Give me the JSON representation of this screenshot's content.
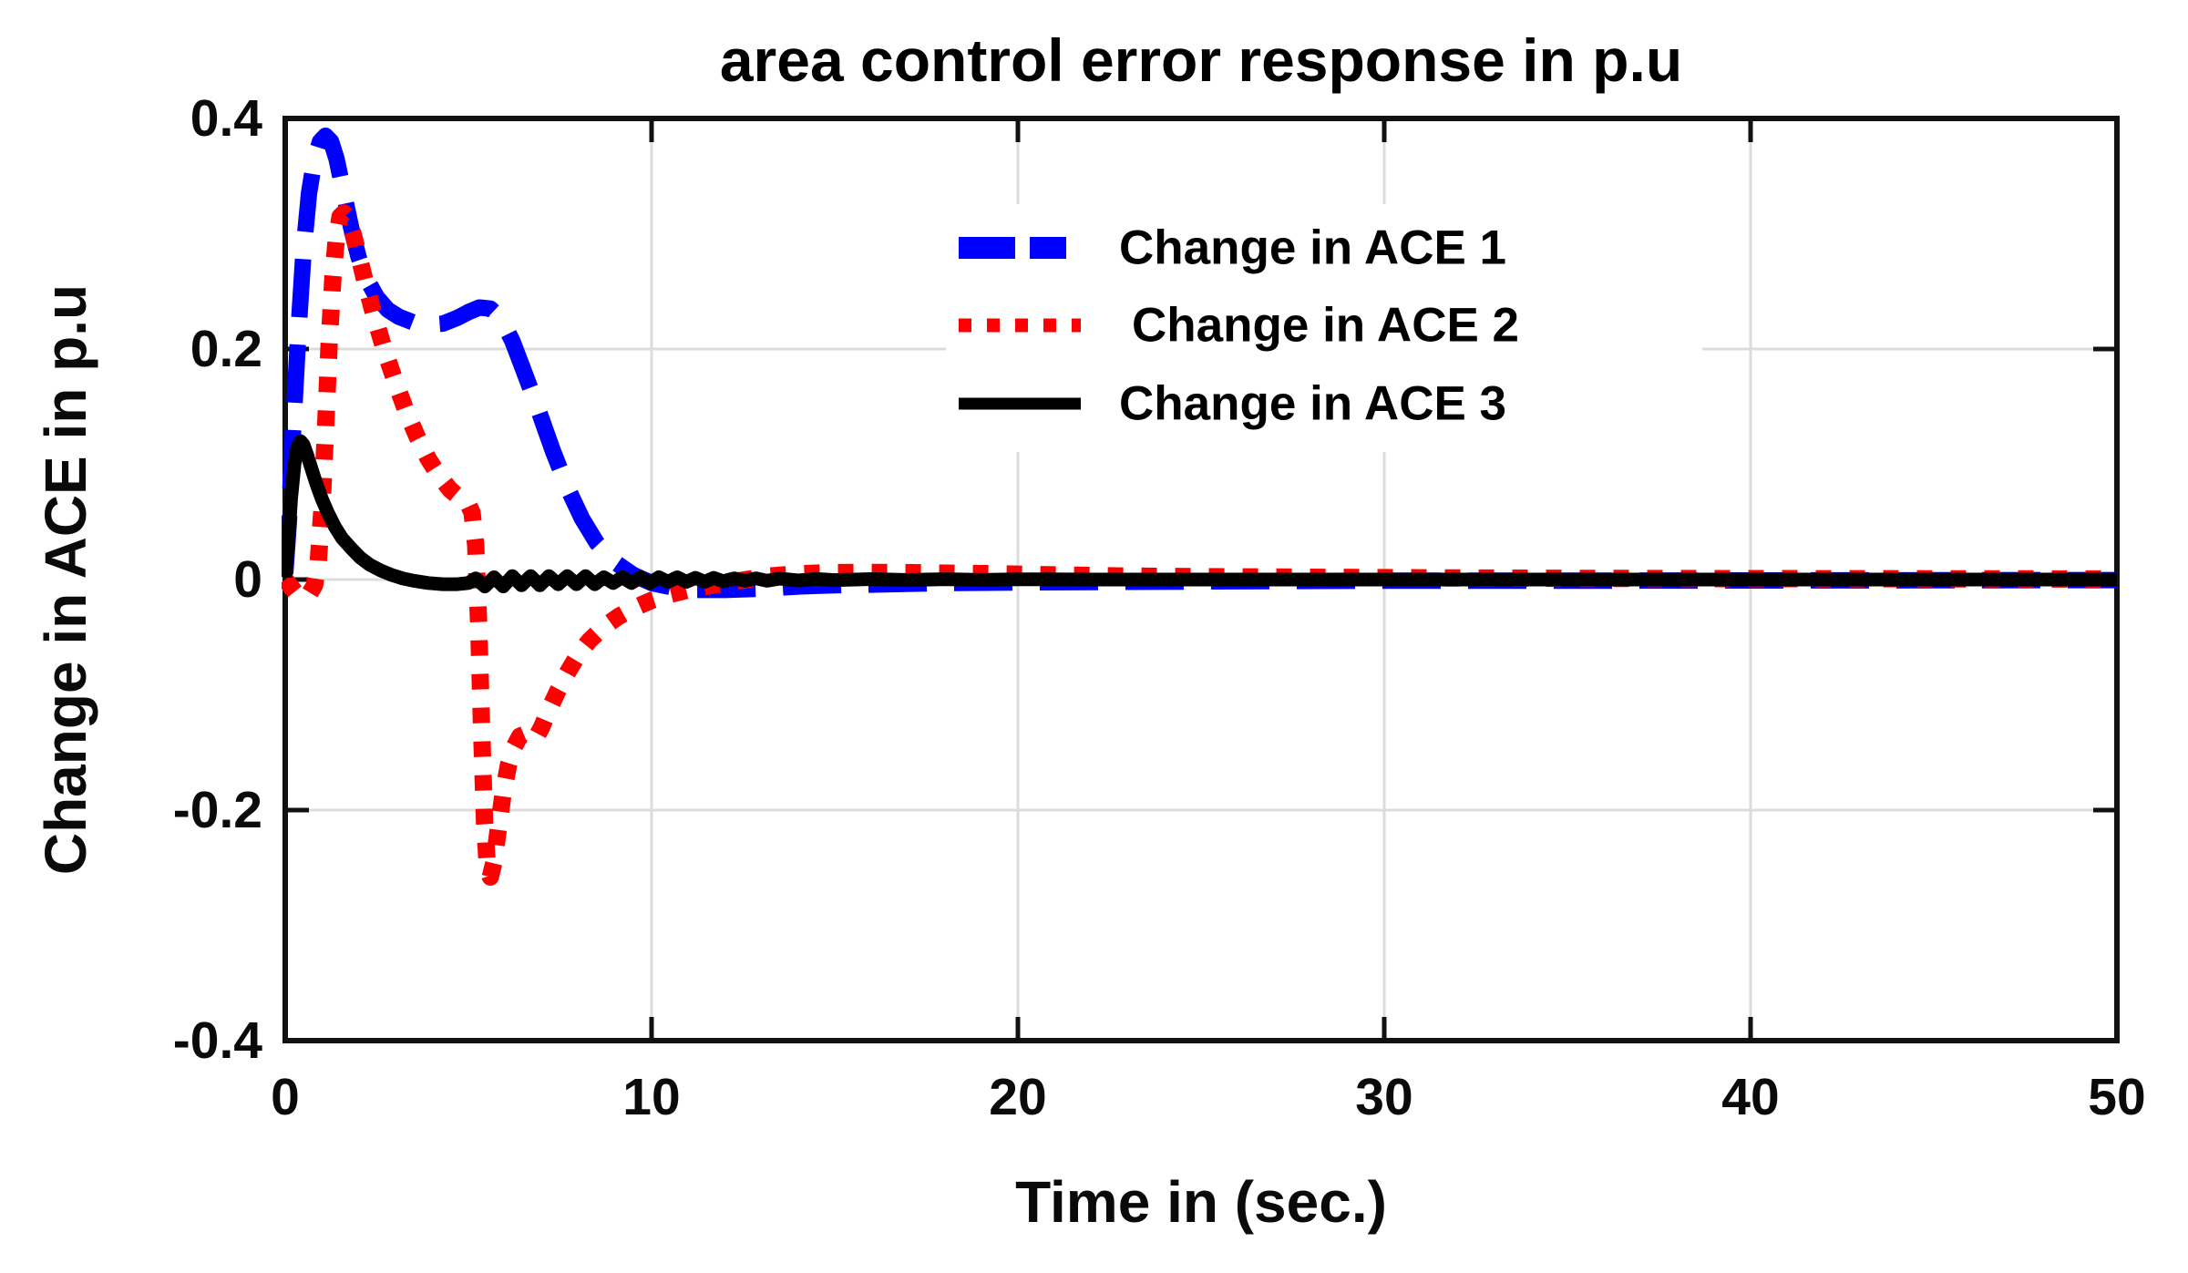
{
  "chart_data": {
    "type": "line",
    "title": "area control error response in p.u",
    "xlabel": "Time in (sec.)",
    "ylabel": "Change in ACE in p.u",
    "xlim": [
      0,
      50
    ],
    "ylim": [
      -0.4,
      0.4
    ],
    "xticks": [
      0,
      10,
      20,
      30,
      40,
      50
    ],
    "xtick_labels": [
      "0",
      "10",
      "20",
      "30",
      "40",
      "50"
    ],
    "yticks": [
      0.4,
      0.2,
      0,
      -0.2,
      -0.4
    ],
    "ytick_labels": [
      "0.4",
      "0.2",
      "0",
      "-0.2",
      "-0.4"
    ],
    "grid": true,
    "grid_color": "#dcdcdc",
    "axis_color": "#111111",
    "background": "#ffffff",
    "legend_position": "upper center-right, no border, white background",
    "series": [
      {
        "name": "Change in ACE 1",
        "color": "#0000ff",
        "style": "dashed",
        "width": 18,
        "points": [
          [
            0,
            0.005
          ],
          [
            0.1,
            0.05
          ],
          [
            0.2,
            0.12
          ],
          [
            0.35,
            0.21
          ],
          [
            0.5,
            0.285
          ],
          [
            0.65,
            0.335
          ],
          [
            0.8,
            0.365
          ],
          [
            0.95,
            0.38
          ],
          [
            1.1,
            0.385
          ],
          [
            1.25,
            0.38
          ],
          [
            1.4,
            0.365
          ],
          [
            1.6,
            0.335
          ],
          [
            1.8,
            0.305
          ],
          [
            2,
            0.28
          ],
          [
            2.2,
            0.262
          ],
          [
            2.5,
            0.245
          ],
          [
            2.8,
            0.234
          ],
          [
            3.1,
            0.228
          ],
          [
            3.5,
            0.223
          ],
          [
            3.9,
            0.221
          ],
          [
            4.3,
            0.222
          ],
          [
            4.7,
            0.227
          ],
          [
            5,
            0.232
          ],
          [
            5.3,
            0.236
          ],
          [
            5.6,
            0.235
          ],
          [
            5.9,
            0.226
          ],
          [
            6.2,
            0.207
          ],
          [
            6.5,
            0.182
          ],
          [
            6.9,
            0.148
          ],
          [
            7.3,
            0.112
          ],
          [
            7.7,
            0.08
          ],
          [
            8.1,
            0.053
          ],
          [
            8.5,
            0.032
          ],
          [
            9,
            0.015
          ],
          [
            9.5,
            0.004
          ],
          [
            10,
            -0.003
          ],
          [
            10.6,
            -0.007
          ],
          [
            11.2,
            -0.009
          ],
          [
            12,
            -0.009
          ],
          [
            13,
            -0.008
          ],
          [
            14,
            -0.006
          ],
          [
            15,
            -0.005
          ],
          [
            16.5,
            -0.004
          ],
          [
            18,
            -0.003
          ],
          [
            20,
            -0.0025
          ],
          [
            23,
            -0.002
          ],
          [
            26,
            -0.0015
          ],
          [
            30,
            -0.001
          ],
          [
            35,
            -0.001
          ],
          [
            40,
            -0.0008
          ],
          [
            45,
            -0.0006
          ],
          [
            50,
            -0.0005
          ]
        ]
      },
      {
        "name": "Change in ACE 2",
        "color": "#ff0000",
        "style": "dotted",
        "width": 19,
        "points": [
          [
            0,
            0
          ],
          [
            0.15,
            -0.006
          ],
          [
            0.3,
            -0.012
          ],
          [
            0.5,
            -0.015
          ],
          [
            0.65,
            -0.013
          ],
          [
            0.8,
            -0.005
          ],
          [
            0.9,
            0.015
          ],
          [
            1,
            0.06
          ],
          [
            1.1,
            0.13
          ],
          [
            1.2,
            0.205
          ],
          [
            1.3,
            0.262
          ],
          [
            1.4,
            0.298
          ],
          [
            1.5,
            0.315
          ],
          [
            1.6,
            0.318
          ],
          [
            1.72,
            0.313
          ],
          [
            1.85,
            0.3
          ],
          [
            2,
            0.282
          ],
          [
            2.2,
            0.256
          ],
          [
            2.4,
            0.232
          ],
          [
            2.7,
            0.2
          ],
          [
            3,
            0.172
          ],
          [
            3.3,
            0.146
          ],
          [
            3.6,
            0.124
          ],
          [
            3.9,
            0.105
          ],
          [
            4.2,
            0.09
          ],
          [
            4.5,
            0.078
          ],
          [
            4.8,
            0.07
          ],
          [
            5,
            0.065
          ],
          [
            5.1,
            0.058
          ],
          [
            5.2,
            0.03
          ],
          [
            5.28,
            -0.04
          ],
          [
            5.36,
            -0.13
          ],
          [
            5.44,
            -0.21
          ],
          [
            5.52,
            -0.25
          ],
          [
            5.6,
            -0.258
          ],
          [
            5.7,
            -0.245
          ],
          [
            5.82,
            -0.215
          ],
          [
            5.95,
            -0.185
          ],
          [
            6.1,
            -0.16
          ],
          [
            6.25,
            -0.145
          ],
          [
            6.4,
            -0.136
          ],
          [
            6.55,
            -0.134
          ],
          [
            6.7,
            -0.138
          ],
          [
            6.85,
            -0.137
          ],
          [
            7,
            -0.128
          ],
          [
            7.2,
            -0.113
          ],
          [
            7.45,
            -0.096
          ],
          [
            7.7,
            -0.081
          ],
          [
            8,
            -0.065
          ],
          [
            8.3,
            -0.053
          ],
          [
            8.7,
            -0.041
          ],
          [
            9.1,
            -0.032
          ],
          [
            9.5,
            -0.025
          ],
          [
            10,
            -0.018
          ],
          [
            10.5,
            -0.013
          ],
          [
            11,
            -0.009
          ],
          [
            11.5,
            -0.006
          ],
          [
            12,
            -0.003
          ],
          [
            12.6,
            0
          ],
          [
            13.2,
            0.003
          ],
          [
            14,
            0.005
          ],
          [
            15,
            0.006
          ],
          [
            16,
            0.0062
          ],
          [
            17,
            0.006
          ],
          [
            18,
            0.0055
          ],
          [
            19.5,
            0.005
          ],
          [
            21,
            0.004
          ],
          [
            23,
            0.003
          ],
          [
            25,
            0.0025
          ],
          [
            28,
            0.002
          ],
          [
            31,
            0.0015
          ],
          [
            35,
            0.001
          ],
          [
            40,
            0.0008
          ],
          [
            45,
            0.0006
          ],
          [
            50,
            0.0005
          ]
        ]
      },
      {
        "name": "Change in ACE 3",
        "color": "#000000",
        "style": "solid",
        "width": 15,
        "points": [
          [
            0,
            0.002
          ],
          [
            0.08,
            0.03
          ],
          [
            0.16,
            0.07
          ],
          [
            0.25,
            0.1
          ],
          [
            0.33,
            0.115
          ],
          [
            0.42,
            0.12
          ],
          [
            0.5,
            0.117
          ],
          [
            0.6,
            0.108
          ],
          [
            0.72,
            0.096
          ],
          [
            0.85,
            0.083
          ],
          [
            1,
            0.07
          ],
          [
            1.15,
            0.059
          ],
          [
            1.35,
            0.046
          ],
          [
            1.55,
            0.036
          ],
          [
            1.8,
            0.027
          ],
          [
            2.05,
            0.019
          ],
          [
            2.3,
            0.013
          ],
          [
            2.6,
            0.008
          ],
          [
            2.9,
            0.004
          ],
          [
            3.2,
            0.001
          ],
          [
            3.5,
            -0.001
          ],
          [
            3.9,
            -0.003
          ],
          [
            4.3,
            -0.004
          ],
          [
            4.7,
            -0.004
          ],
          [
            5,
            -0.003
          ],
          [
            5.2,
            0.001
          ],
          [
            5.45,
            -0.006
          ],
          [
            5.7,
            0.002
          ],
          [
            5.95,
            -0.006
          ],
          [
            6.2,
            0.003
          ],
          [
            6.45,
            -0.005
          ],
          [
            6.7,
            0.003
          ],
          [
            6.95,
            -0.005
          ],
          [
            7.2,
            0.003
          ],
          [
            7.45,
            -0.004
          ],
          [
            7.7,
            0.003
          ],
          [
            7.95,
            -0.004
          ],
          [
            8.2,
            0.003
          ],
          [
            8.45,
            -0.004
          ],
          [
            8.7,
            0.002
          ],
          [
            8.95,
            -0.003
          ],
          [
            9.2,
            0.002
          ],
          [
            9.45,
            -0.003
          ],
          [
            9.7,
            0.002
          ],
          [
            9.95,
            -0.003
          ],
          [
            10.2,
            0.002
          ],
          [
            10.45,
            -0.002
          ],
          [
            10.7,
            0.002
          ],
          [
            10.95,
            -0.002
          ],
          [
            11.2,
            0.0015
          ],
          [
            11.45,
            -0.002
          ],
          [
            11.7,
            0.0015
          ],
          [
            11.95,
            -0.0015
          ],
          [
            12.25,
            0.001
          ],
          [
            12.55,
            -0.001
          ],
          [
            12.85,
            0.001
          ],
          [
            13.15,
            -0.001
          ],
          [
            13.5,
            0.0008
          ],
          [
            14,
            -0.0008
          ],
          [
            14.5,
            0.0005
          ],
          [
            15,
            -0.0005
          ],
          [
            16,
            0.0004
          ],
          [
            17,
            -0.0004
          ],
          [
            18,
            0.0003
          ],
          [
            19,
            -0.0003
          ],
          [
            20,
            0.0002
          ],
          [
            22,
            0
          ],
          [
            25,
            0
          ],
          [
            30,
            0
          ],
          [
            40,
            0
          ],
          [
            50,
            0
          ]
        ]
      }
    ]
  }
}
